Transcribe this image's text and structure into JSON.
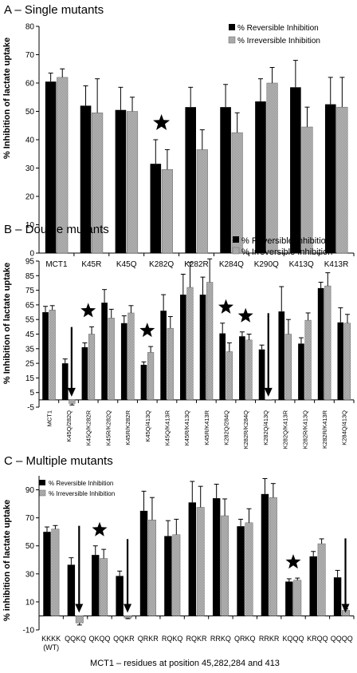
{
  "panels": [
    {
      "panel_title": "A –  Single mutants",
      "ylabel": "% Inhibition of lactate uptake",
      "xlabel": "",
      "legend": [
        "% Reversible Inhibition",
        "% Irreversible Inhibition"
      ],
      "chart_data": {
        "type": "bar",
        "categories": [
          "MCT1",
          "K45R",
          "K45Q",
          "K282Q",
          "K282R",
          "K284Q",
          "K290Q",
          "K413Q",
          "K413R"
        ],
        "series": [
          {
            "name": "% Reversible Inhibition",
            "values": [
              60.5,
              52,
              50.5,
              31.5,
              51.5,
              51.5,
              53.5,
              58.5,
              52.5
            ],
            "errors": [
              3,
              7,
              8,
              8.5,
              7,
              8,
              8,
              9.5,
              9.5
            ]
          },
          {
            "name": "% Irreversible Inhibition",
            "values": [
              62,
              49.5,
              50,
              29.5,
              36.5,
              42.5,
              60,
              44.5,
              51.5
            ],
            "errors": [
              3,
              12,
              5,
              7,
              7,
              7,
              5.5,
              7,
              10.5
            ]
          }
        ],
        "ylim": [
          0,
          80
        ],
        "yticks": [
          0,
          10,
          20,
          30,
          40,
          50,
          60,
          70,
          80
        ],
        "stars": [
          "K282Q"
        ],
        "arrows": []
      }
    },
    {
      "panel_title": "B –  Double mutants",
      "ylabel": "% Inhibition of lactate uptake",
      "xlabel": "",
      "legend": [
        "% Reversible Inhibition",
        "% Irreversible Inhibition"
      ],
      "chart_data": {
        "type": "bar",
        "categories": [
          "MCT1",
          "K45Q/282Q",
          "K45Q/K282R",
          "K45R/K282Q",
          "K45R/K282R",
          "K45Q/413Q",
          "K45Q/K413R",
          "K45R/K413Q",
          "K45R/K413R",
          "K282Q/284Q",
          "K282R/K284Q",
          "K282Q/413Q",
          "K282Q/K413R",
          "K282R/K413Q",
          "K282R/K413R",
          "K284Q/413Q"
        ],
        "series": [
          {
            "name": "% Reversible Inhibition",
            "values": [
              60,
              25,
              36,
              66.5,
              52.5,
              24,
              61,
              72,
              72,
              45.5,
              43.5,
              34.5,
              60.5,
              38.5,
              76.5,
              53
            ],
            "errors": [
              4,
              3,
              3,
              9,
              5,
              2,
              11,
              14,
              12,
              7,
              3,
              3,
              17,
              4,
              4,
              10
            ]
          },
          {
            "name": "% Irreversible Inhibition",
            "values": [
              61.5,
              -2.5,
              45,
              56,
              59.5,
              32.5,
              49,
              77,
              80.5,
              33,
              41,
              0,
              45,
              54.5,
              78,
              52.5
            ],
            "errors": [
              3,
              1,
              5,
              6,
              5,
              4,
              8,
              17,
              16,
              6,
              4,
              0,
              10,
              5,
              9,
              6
            ]
          }
        ],
        "ylim": [
          -5,
          95
        ],
        "yticks": [
          -5,
          5,
          15,
          25,
          35,
          45,
          55,
          65,
          75,
          85,
          95
        ],
        "stars": [
          "K45Q/K282R",
          "K45Q/413Q",
          "K282Q/284Q",
          "K282R/K284Q"
        ],
        "arrows": [
          "K45Q/282Q",
          "K282Q/413Q"
        ]
      }
    },
    {
      "panel_title": "C –  Multiple mutants",
      "ylabel": "% inhibition of lactate uptake",
      "xlabel": "MCT1 – residues at position 45,282,284 and 413",
      "legend": [
        "% Reversible Inhibition",
        "% Irreversible Inhibition"
      ],
      "chart_data": {
        "type": "bar",
        "categories": [
          "KKKK\n(WT)",
          "QQKQ",
          "QKQQ",
          "QQKR",
          "QRKR",
          "RQKQ",
          "RQKR",
          "RRKQ",
          "QRKQ",
          "RRKR",
          "KQQQ",
          "KRQQ",
          "QQQQ"
        ],
        "series": [
          {
            "name": "% Reversible Inhibition",
            "values": [
              60,
              36.5,
              43.5,
              28.5,
              75,
              57,
              81,
              84,
              64,
              87,
              24.5,
              42.5,
              27.5
            ],
            "errors": [
              3.5,
              5,
              6.5,
              3.5,
              14,
              11,
              15,
              10,
              5,
              11,
              2,
              3.5,
              5
            ]
          },
          {
            "name": "% Irreversible Inhibition",
            "values": [
              62,
              -5,
              41,
              -1.5,
              68.5,
              58,
              77.5,
              71.5,
              66.5,
              84.5,
              25.5,
              51.5,
              4
            ],
            "errors": [
              2.5,
              1.5,
              6.5,
              0.5,
              16,
              11,
              15,
              12,
              10,
              10,
              1.5,
              3.5,
              1
            ]
          }
        ],
        "ylim": [
          -10,
          100
        ],
        "yticks": [
          -10,
          10,
          30,
          50,
          70,
          90
        ],
        "stars": [
          "QKQQ",
          "KQQQ"
        ],
        "arrows": [
          "QQKQ",
          "QQKR",
          "QQQQ"
        ]
      }
    }
  ]
}
